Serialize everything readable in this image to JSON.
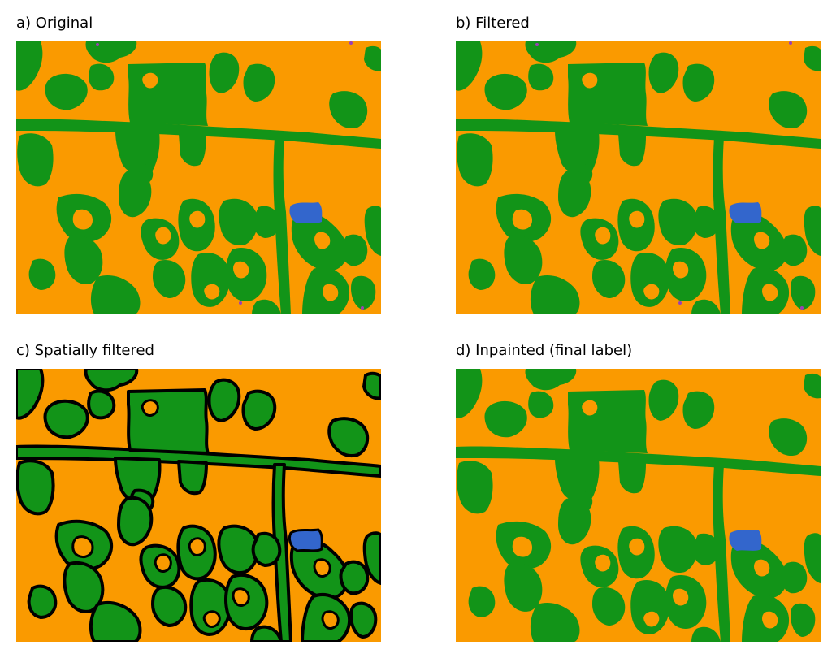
{
  "colors": {
    "background_class": "#FA9A00",
    "vegetation_class": "#129418",
    "water_class": "#3366CC",
    "boundary": "#000000"
  },
  "panels": [
    {
      "title": "a) Original"
    },
    {
      "title": "b) Filtered"
    },
    {
      "title": "c) Spatially filtered"
    },
    {
      "title": "d) Inpainted (final label)"
    }
  ]
}
